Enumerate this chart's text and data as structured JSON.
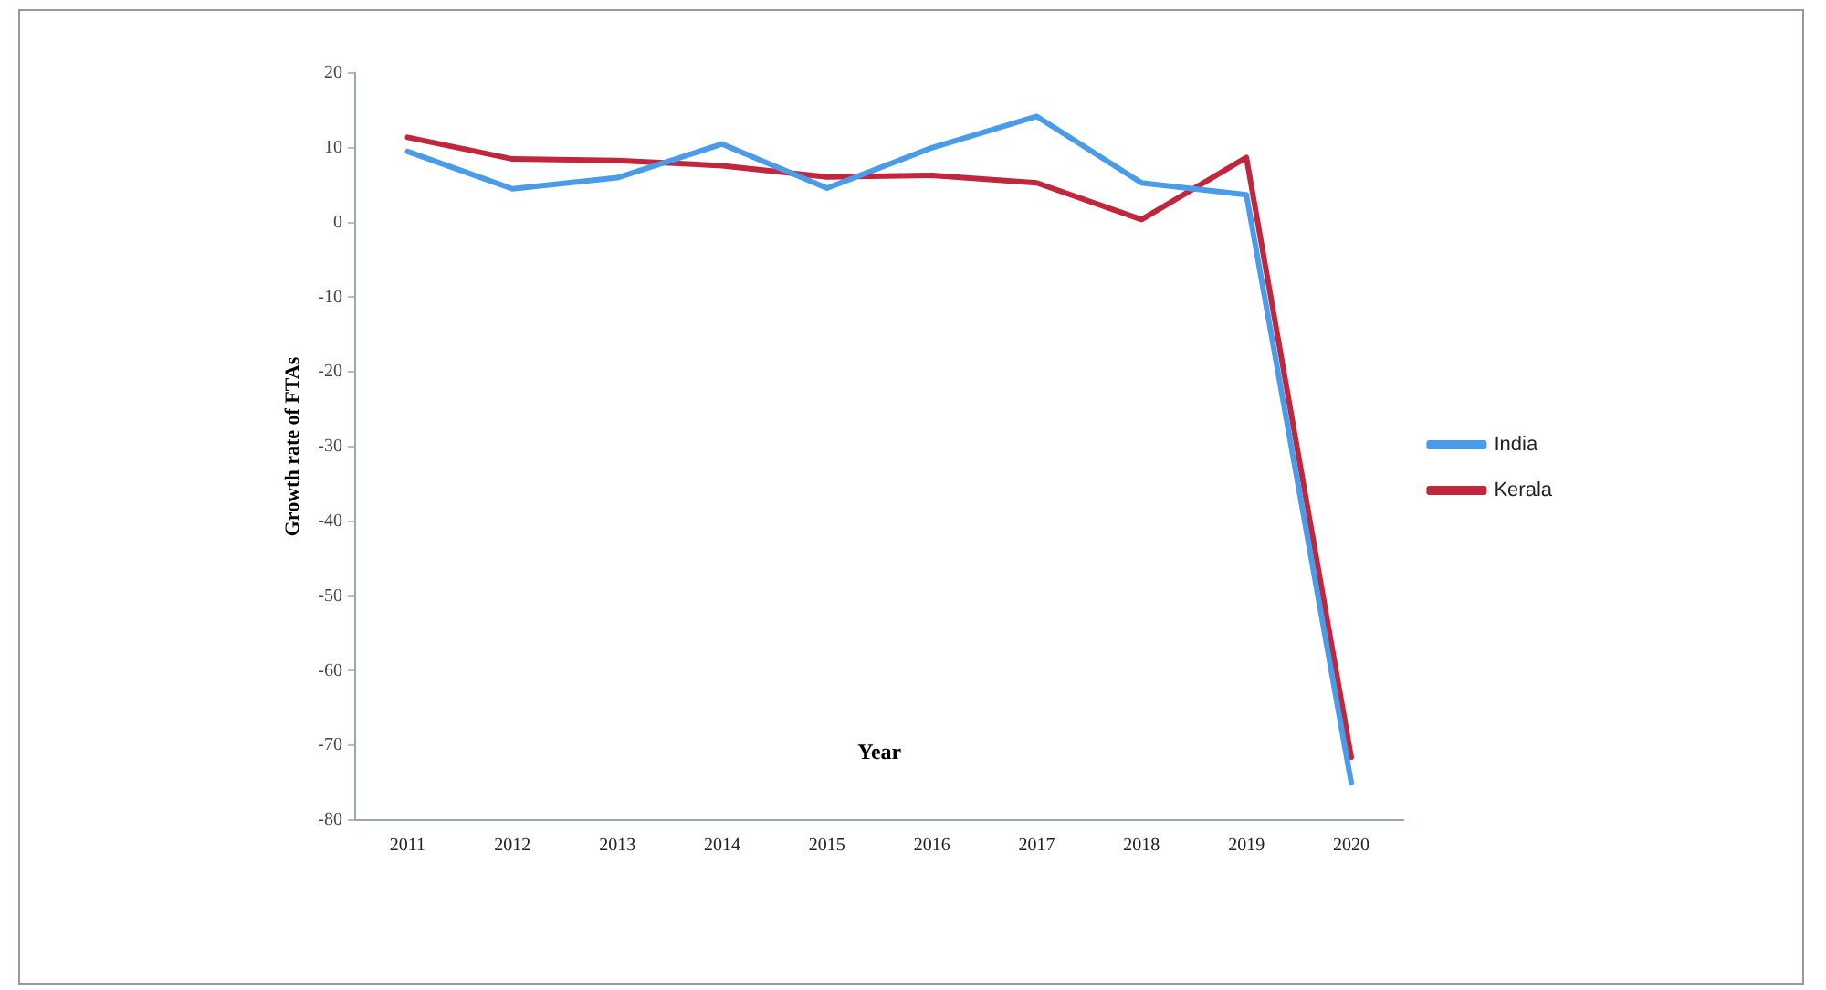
{
  "chart_data": {
    "type": "line",
    "xlabel": "Year",
    "ylabel": "Growth rate of FTAs",
    "categories": [
      "2011",
      "2012",
      "2013",
      "2014",
      "2015",
      "2016",
      "2017",
      "2018",
      "2019",
      "2020"
    ],
    "series": [
      {
        "name": "India",
        "color": "#4a9be8",
        "values": [
          9.5,
          4.5,
          6,
          10.5,
          4.6,
          10,
          14.2,
          5.3,
          3.7,
          -75
        ]
      },
      {
        "name": "Kerala",
        "color": "#c0273d",
        "values": [
          11.4,
          8.5,
          8.3,
          7.6,
          6.1,
          6.3,
          5.3,
          0.4,
          8.7,
          -71.6
        ]
      }
    ],
    "ylim": [
      -80,
      20
    ],
    "yticks": [
      20,
      10,
      0,
      -10,
      -20,
      -30,
      -40,
      -50,
      -60,
      -70,
      -80
    ],
    "grid": false,
    "legend": "right",
    "marker": "none",
    "line_style": "solid"
  }
}
